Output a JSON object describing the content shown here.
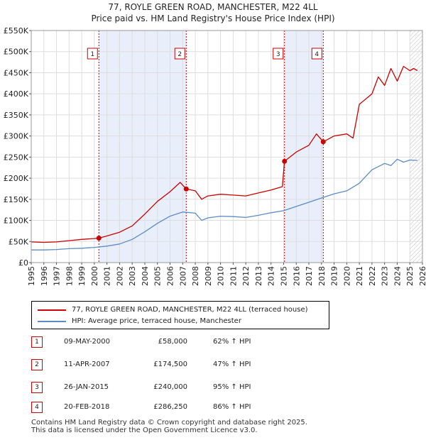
{
  "title": {
    "line1": "77, ROYLE GREEN ROAD, MANCHESTER, M22 4LL",
    "line2": "Price paid vs. HM Land Registry's House Price Index (HPI)"
  },
  "legend": {
    "property_label": "77, ROYLE GREEN ROAD, MANCHESTER, M22 4LL (terraced house)",
    "hpi_label": "HPI: Average price, terraced house, Manchester"
  },
  "colors": {
    "property": "#cc0000",
    "hpi": "#5b8cc8",
    "shade": "#e8eefa",
    "grid": "#dddddd"
  },
  "sales": [
    {
      "num": "1",
      "date": "09-MAY-2000",
      "price": "£58,000",
      "hpi": "62% ↑ HPI"
    },
    {
      "num": "2",
      "date": "11-APR-2007",
      "price": "£174,500",
      "hpi": "47% ↑ HPI"
    },
    {
      "num": "3",
      "date": "26-JAN-2015",
      "price": "£240,000",
      "hpi": "95% ↑ HPI"
    },
    {
      "num": "4",
      "date": "20-FEB-2018",
      "price": "£286,250",
      "hpi": "86% ↑ HPI"
    }
  ],
  "footer": {
    "line1": "Contains HM Land Registry data © Crown copyright and database right 2025.",
    "line2": "This data is licensed under the Open Government Licence v3.0."
  },
  "chart_data": {
    "type": "line",
    "xlim": [
      1995,
      2026
    ],
    "ylim": [
      0,
      550000
    ],
    "yticks": [
      0,
      50000,
      100000,
      150000,
      200000,
      250000,
      300000,
      350000,
      400000,
      450000,
      500000,
      550000
    ],
    "ytick_labels": [
      "£0",
      "£50K",
      "£100K",
      "£150K",
      "£200K",
      "£250K",
      "£300K",
      "£350K",
      "£400K",
      "£450K",
      "£500K",
      "£550K"
    ],
    "xticks": [
      1995,
      1996,
      1997,
      1998,
      1999,
      2000,
      2001,
      2002,
      2003,
      2004,
      2005,
      2006,
      2007,
      2008,
      2009,
      2010,
      2011,
      2012,
      2013,
      2014,
      2015,
      2016,
      2017,
      2018,
      2019,
      2020,
      2021,
      2022,
      2023,
      2024,
      2025,
      2026
    ],
    "shaded_ranges": [
      [
        2000.36,
        2007.28
      ],
      [
        2015.07,
        2018.14
      ]
    ],
    "hatched_from": 2025.0,
    "sale_markers": [
      {
        "label": "1",
        "x": 2000.36,
        "y": 58000
      },
      {
        "label": "2",
        "x": 2007.28,
        "y": 174500
      },
      {
        "label": "3",
        "x": 2015.07,
        "y": 240000
      },
      {
        "label": "4",
        "x": 2018.14,
        "y": 286250
      }
    ],
    "series": [
      {
        "name": "77, ROYLE GREEN ROAD, MANCHESTER, M22 4LL (terraced house)",
        "x": [
          1995,
          1996,
          1997,
          1998,
          1999,
          2000,
          2000.36,
          2001,
          2002,
          2003,
          2004,
          2005,
          2006,
          2006.8,
          2007.28,
          2008,
          2008.5,
          2009,
          2010,
          2011,
          2012,
          2013,
          2014,
          2014.9,
          2015.07,
          2016,
          2017,
          2017.6,
          2018.14,
          2019,
          2020,
          2020.5,
          2021,
          2022,
          2022.5,
          2023,
          2023.5,
          2024,
          2024.5,
          2025,
          2025.3,
          2025.6
        ],
        "y": [
          49000,
          48000,
          49000,
          52000,
          55000,
          57000,
          58000,
          63000,
          72000,
          87000,
          115000,
          145000,
          168000,
          190000,
          174500,
          170000,
          150000,
          158000,
          162000,
          160000,
          158000,
          165000,
          172000,
          180000,
          240000,
          262000,
          278000,
          305000,
          286250,
          300000,
          305000,
          295000,
          375000,
          400000,
          440000,
          420000,
          460000,
          430000,
          465000,
          455000,
          460000,
          455000
        ]
      },
      {
        "name": "HPI: Average price, terraced house, Manchester",
        "x": [
          1995,
          1996,
          1997,
          1998,
          1999,
          2000,
          2001,
          2002,
          2003,
          2004,
          2005,
          2006,
          2007,
          2008,
          2008.5,
          2009,
          2010,
          2011,
          2012,
          2013,
          2014,
          2015,
          2016,
          2017,
          2018,
          2019,
          2020,
          2021,
          2022,
          2023,
          2023.5,
          2024,
          2024.5,
          2025,
          2025.6
        ],
        "y": [
          30000,
          30000,
          31000,
          33000,
          34000,
          36000,
          39000,
          44000,
          55000,
          73000,
          93000,
          110000,
          120000,
          117000,
          100000,
          106000,
          110000,
          109000,
          107000,
          112000,
          118000,
          123000,
          133000,
          143000,
          153000,
          163000,
          170000,
          188000,
          220000,
          235000,
          230000,
          245000,
          238000,
          243000,
          242000
        ]
      }
    ]
  }
}
